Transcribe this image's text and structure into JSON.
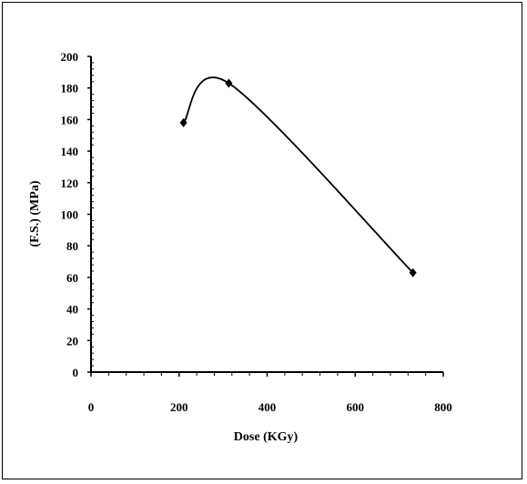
{
  "chart_data": {
    "type": "scatter",
    "title": "",
    "xlabel": "Dose (KGy)",
    "ylabel": "(F.S.) (MPa)",
    "xlim": [
      0,
      800
    ],
    "ylim": [
      0,
      200
    ],
    "x_ticks": [
      "0",
      "200",
      "400",
      "600",
      "800"
    ],
    "y_ticks": [
      "0",
      "20",
      "40",
      "60",
      "80",
      "100",
      "120",
      "140",
      "160",
      "180",
      "200"
    ],
    "grid": false,
    "legend": "none",
    "marker": "diamond",
    "smooth_line": true,
    "series": [
      {
        "x": [
          210,
          313,
          731
        ],
        "y": [
          158,
          183,
          63
        ]
      }
    ],
    "colors": {
      "line": "#000000",
      "marker": "#000000"
    }
  }
}
